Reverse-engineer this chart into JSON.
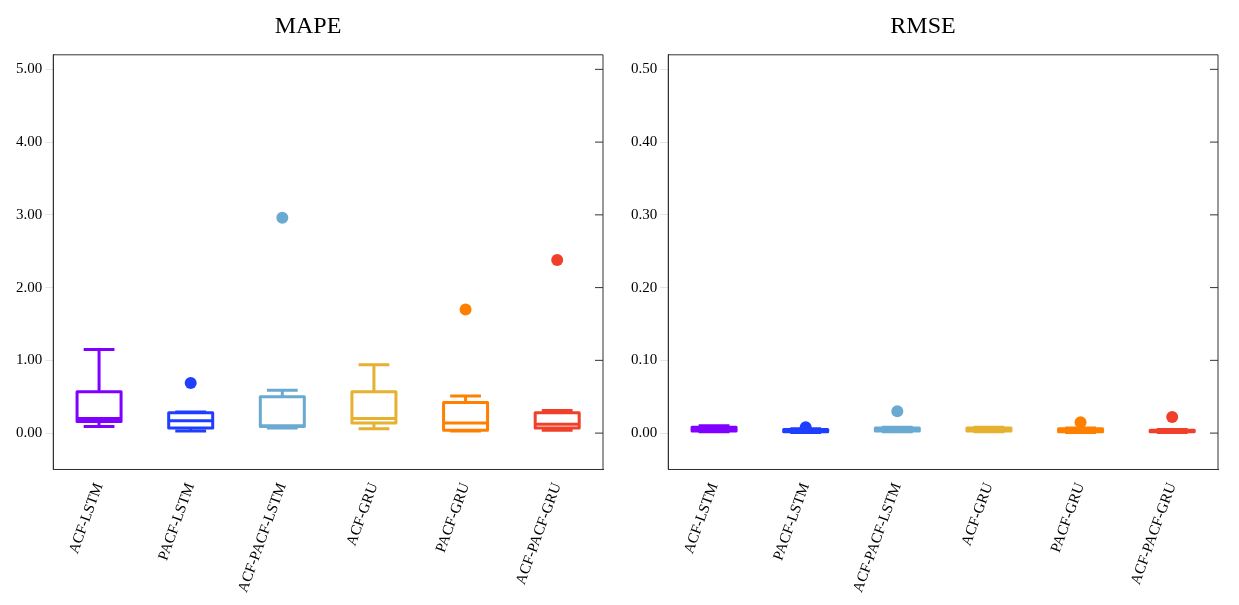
{
  "chart_data": [
    {
      "type": "box",
      "title": "MAPE",
      "categories": [
        "ACF-LSTM",
        "PACF-LSTM",
        "ACF-PACF-LSTM",
        "ACF-GRU",
        "PACF-GRU",
        "ACF-PACF-GRU"
      ],
      "colors": [
        "#8000ff",
        "#1f3fff",
        "#6aaad2",
        "#e6b030",
        "#ff8000",
        "#f0402a"
      ],
      "boxes": [
        {
          "low": 0.09,
          "q1": 0.16,
          "median": 0.2,
          "q3": 0.57,
          "high": 1.15
        },
        {
          "low": 0.03,
          "q1": 0.07,
          "median": 0.17,
          "q3": 0.28,
          "high": 0.29,
          "outliers": [
            0.69
          ]
        },
        {
          "low": 0.07,
          "q1": 0.09,
          "median": 0.1,
          "q3": 0.5,
          "high": 0.59,
          "outliers": [
            2.96
          ]
        },
        {
          "low": 0.06,
          "q1": 0.14,
          "median": 0.2,
          "q3": 0.57,
          "high": 0.94
        },
        {
          "low": 0.03,
          "q1": 0.04,
          "median": 0.14,
          "q3": 0.42,
          "high": 0.51,
          "outliers": [
            1.7
          ]
        },
        {
          "low": 0.04,
          "q1": 0.07,
          "median": 0.12,
          "q3": 0.28,
          "high": 0.31,
          "outliers": [
            2.38
          ]
        }
      ],
      "ylim": [
        -0.5,
        5.2
      ],
      "yticks": [
        {
          "value": 0,
          "label": "0.00"
        },
        {
          "value": 1,
          "label": "1.00"
        },
        {
          "value": 2,
          "label": "2.00"
        },
        {
          "value": 3,
          "label": "3.00"
        },
        {
          "value": 4,
          "label": "4.00"
        },
        {
          "value": 5,
          "label": "5.00"
        }
      ],
      "grid": false,
      "legend": false
    },
    {
      "type": "box",
      "title": "RMSE",
      "categories": [
        "ACF-LSTM",
        "PACF-LSTM",
        "ACF-PACF-LSTM",
        "ACF-GRU",
        "PACF-GRU",
        "ACF-PACF-GRU"
      ],
      "colors": [
        "#8000ff",
        "#1f3fff",
        "#6aaad2",
        "#e6b030",
        "#ff8000",
        "#f0402a"
      ],
      "boxes": [
        {
          "low": 0.002,
          "q1": 0.003,
          "median": 0.005,
          "q3": 0.008,
          "high": 0.01
        },
        {
          "low": 0.001,
          "q1": 0.002,
          "median": 0.003,
          "q3": 0.005,
          "high": 0.006,
          "outliers": [
            0.008
          ]
        },
        {
          "low": 0.002,
          "q1": 0.003,
          "median": 0.004,
          "q3": 0.007,
          "high": 0.008,
          "outliers": [
            0.03
          ]
        },
        {
          "low": 0.002,
          "q1": 0.003,
          "median": 0.005,
          "q3": 0.007,
          "high": 0.008
        },
        {
          "low": 0.001,
          "q1": 0.002,
          "median": 0.003,
          "q3": 0.006,
          "high": 0.007,
          "outliers": [
            0.015
          ]
        },
        {
          "low": 0.001,
          "q1": 0.002,
          "median": 0.003,
          "q3": 0.004,
          "high": 0.005,
          "outliers": [
            0.022
          ]
        }
      ],
      "ylim": [
        -0.05,
        0.52
      ],
      "yticks": [
        {
          "value": 0,
          "label": "0.00"
        },
        {
          "value": 0.1,
          "label": "0.10"
        },
        {
          "value": 0.2,
          "label": "0.20"
        },
        {
          "value": 0.3,
          "label": "0.30"
        },
        {
          "value": 0.4,
          "label": "0.40"
        },
        {
          "value": 0.5,
          "label": "0.50"
        }
      ],
      "grid": false,
      "legend": false
    }
  ]
}
